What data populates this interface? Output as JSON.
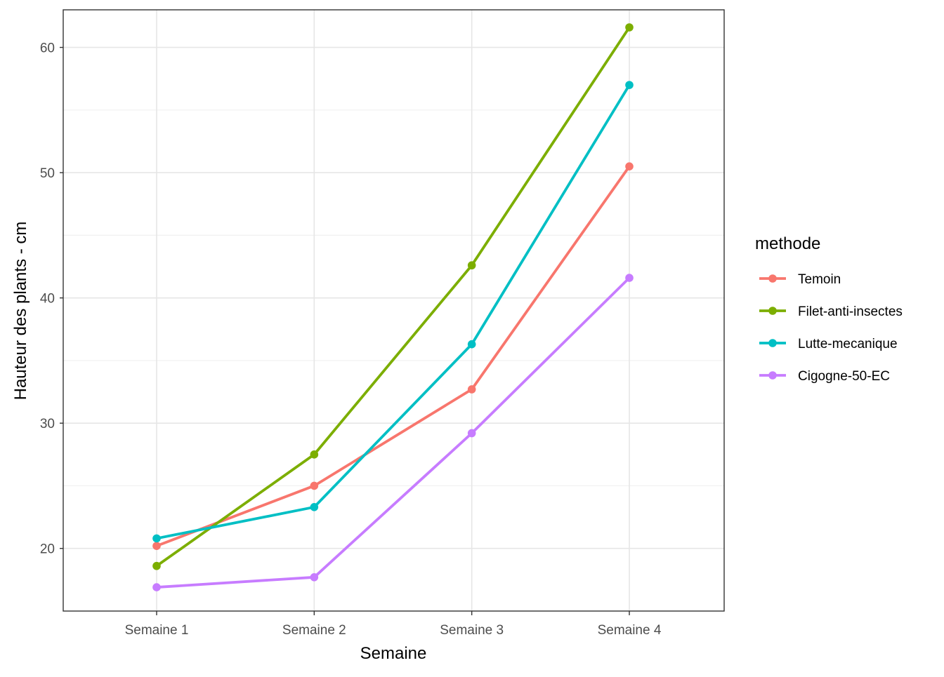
{
  "chart_data": {
    "type": "line",
    "title": "",
    "xlabel": "Semaine",
    "ylabel": "Hauteur des plants - cm",
    "categories": [
      "Semaine 1",
      "Semaine 2",
      "Semaine 3",
      "Semaine 4"
    ],
    "ylim": [
      15,
      63
    ],
    "yticks": [
      20,
      30,
      40,
      50,
      60
    ],
    "grid": true,
    "legend": {
      "title": "methode",
      "position": "right"
    },
    "series": [
      {
        "name": "Temoin",
        "color": "#F8766D",
        "values": [
          20.2,
          25.0,
          32.7,
          50.5
        ]
      },
      {
        "name": "Filet-anti-insectes",
        "color": "#7CAE00",
        "values": [
          18.6,
          27.5,
          42.6,
          61.6
        ]
      },
      {
        "name": "Lutte-mecanique",
        "color": "#00BFC4",
        "values": [
          20.8,
          23.3,
          36.3,
          57.0
        ]
      },
      {
        "name": "Cigogne-50-EC",
        "color": "#C77CFF",
        "values": [
          16.9,
          17.7,
          29.2,
          41.6
        ]
      }
    ]
  }
}
